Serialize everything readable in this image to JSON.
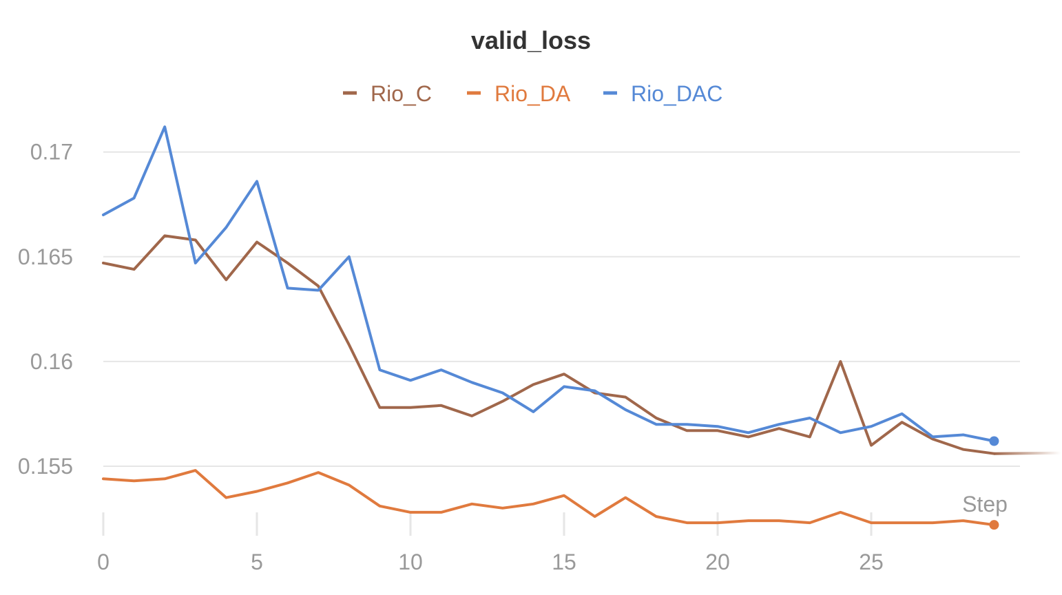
{
  "chart_data": {
    "type": "line",
    "title": "valid_loss",
    "xlabel": "Step",
    "ylabel": "",
    "x": [
      0,
      1,
      2,
      3,
      4,
      5,
      6,
      7,
      8,
      9,
      10,
      11,
      12,
      13,
      14,
      15,
      16,
      17,
      18,
      19,
      20,
      21,
      22,
      23,
      24,
      25,
      26,
      27,
      28,
      29
    ],
    "xlim": [
      0,
      30
    ],
    "ylim": [
      0.1525,
      0.1725
    ],
    "xticks": [
      0,
      5,
      10,
      15,
      20,
      25
    ],
    "xtick_labels": [
      "0",
      "5",
      "10",
      "15",
      "20",
      "25"
    ],
    "yticks": [
      0.155,
      0.16,
      0.165,
      0.17
    ],
    "ytick_labels": [
      "0.155",
      "0.16",
      "0.165",
      "0.17"
    ],
    "grid": true,
    "legend_position": "top-center",
    "series": [
      {
        "name": "Rio_C",
        "color": "#a0674b",
        "values": [
          0.1647,
          0.1644,
          0.166,
          0.1658,
          0.1639,
          0.1657,
          0.1647,
          0.1636,
          0.1608,
          0.1578,
          0.1578,
          0.1579,
          0.1574,
          0.1581,
          0.1589,
          0.1594,
          0.1585,
          0.1583,
          0.1573,
          0.1567,
          0.1567,
          0.1564,
          0.1568,
          0.1564,
          0.16,
          0.156,
          0.1571,
          0.1563,
          0.1558,
          0.1556
        ],
        "extends_to_edge": true,
        "end_marker": false
      },
      {
        "name": "Rio_DA",
        "color": "#e07a3e",
        "values": [
          0.1544,
          0.1543,
          0.1544,
          0.1548,
          0.1535,
          0.1538,
          0.1542,
          0.1547,
          0.1541,
          0.1531,
          0.1528,
          0.1528,
          0.1532,
          0.153,
          0.1532,
          0.1536,
          0.1526,
          0.1535,
          0.1526,
          0.1523,
          0.1523,
          0.1524,
          0.1524,
          0.1523,
          0.1528,
          0.1523,
          0.1523,
          0.1523,
          0.1524,
          0.1522
        ],
        "extends_to_edge": false,
        "end_marker": true
      },
      {
        "name": "Rio_DAC",
        "color": "#5589d6",
        "values": [
          0.167,
          0.1678,
          0.1712,
          0.1647,
          0.1664,
          0.1686,
          0.1635,
          0.1634,
          0.165,
          0.1596,
          0.1591,
          0.1596,
          0.159,
          0.1585,
          0.1576,
          0.1588,
          0.1586,
          0.1577,
          0.157,
          0.157,
          0.1569,
          0.1566,
          0.157,
          0.1573,
          0.1566,
          0.1569,
          0.1575,
          0.1564,
          0.1565,
          0.1562
        ],
        "extends_to_edge": false,
        "end_marker": true
      }
    ]
  }
}
